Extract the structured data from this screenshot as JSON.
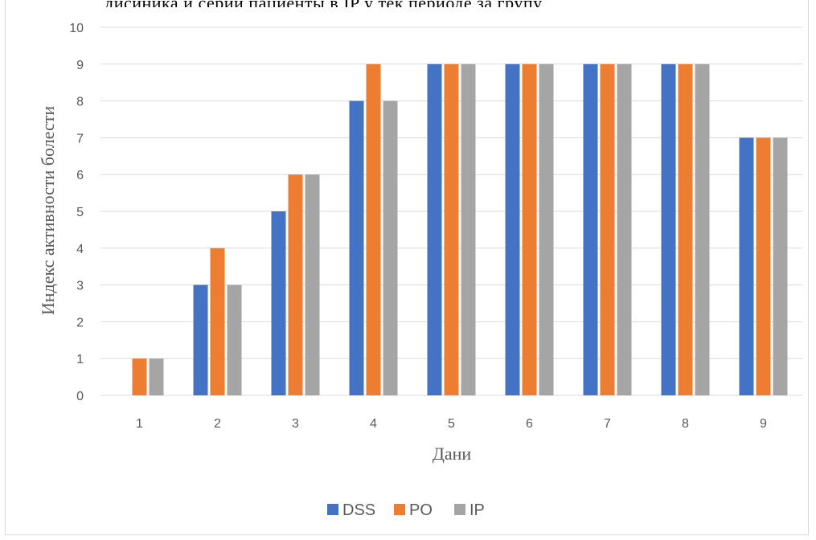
{
  "header_fragment": "дисиника и серии пациенты в IP у тек периоде за групу",
  "colors": {
    "DSS": "#4472c4",
    "PO": "#ed7d31",
    "IP": "#a5a5a5",
    "grid": "#d9d9d9"
  },
  "chart_data": {
    "type": "bar",
    "title": "",
    "xlabel": "Дани",
    "ylabel": "Индекс активности болести",
    "categories": [
      "1",
      "2",
      "3",
      "4",
      "5",
      "6",
      "7",
      "8",
      "9"
    ],
    "series": [
      {
        "name": "DSS",
        "values": [
          0,
          3,
          5,
          8,
          9,
          9,
          9,
          9,
          7
        ]
      },
      {
        "name": "PO",
        "values": [
          1,
          4,
          6,
          9,
          9,
          9,
          9,
          9,
          7
        ]
      },
      {
        "name": "IP",
        "values": [
          1,
          3,
          6,
          8,
          9,
          9,
          9,
          9,
          7
        ]
      }
    ],
    "ylim": [
      0,
      10
    ],
    "yticks": [
      0,
      1,
      2,
      3,
      4,
      5,
      6,
      7,
      8,
      9,
      10
    ],
    "grid": true,
    "legend_position": "bottom"
  }
}
